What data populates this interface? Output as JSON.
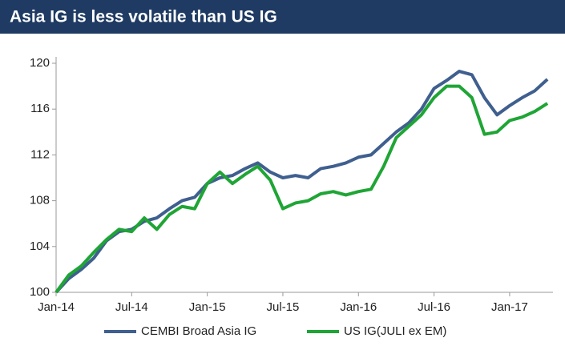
{
  "chart_data": {
    "type": "line",
    "title": "Asia IG is less volatile than US IG",
    "categories": [
      "Jan-14",
      null,
      null,
      null,
      null,
      null,
      "Jul-14",
      null,
      null,
      null,
      null,
      null,
      "Jan-15",
      null,
      null,
      null,
      null,
      null,
      "Jul-15",
      null,
      null,
      null,
      null,
      null,
      "Jan-16",
      null,
      null,
      null,
      null,
      null,
      "Jul-16",
      null,
      null,
      null,
      null,
      null,
      "Jan-17",
      null,
      null,
      null
    ],
    "series": [
      {
        "name": "CEMBI Broad Asia IG",
        "color": "#3f5f8f",
        "values": [
          100,
          101.2,
          102,
          103,
          104.5,
          105.3,
          105.5,
          106.2,
          106.5,
          107.3,
          108,
          108.3,
          109.5,
          110,
          110.2,
          110.8,
          111.3,
          110.5,
          110,
          110.2,
          110,
          110.8,
          111,
          111.3,
          111.8,
          112,
          113,
          114,
          114.8,
          116,
          117.8,
          118.5,
          119.3,
          119,
          117,
          115.5,
          116.3,
          117,
          117.6,
          118.6
        ]
      },
      {
        "name": "US IG(JULI ex EM)",
        "color": "#1fa535",
        "values": [
          100,
          101.5,
          102.3,
          103.5,
          104.6,
          105.5,
          105.3,
          106.5,
          105.5,
          106.8,
          107.5,
          107.3,
          109.5,
          110.5,
          109.5,
          110.3,
          111,
          109.8,
          107.3,
          107.8,
          108,
          108.6,
          108.8,
          108.5,
          108.8,
          109,
          111,
          113.5,
          114.5,
          115.5,
          117,
          118,
          118,
          117,
          113.8,
          114,
          115,
          115.3,
          115.8,
          116.5
        ]
      }
    ],
    "ylim": [
      100,
      120
    ],
    "yticks": [
      100,
      104,
      108,
      112,
      116,
      120
    ],
    "grid": false,
    "legend": "bottom"
  }
}
